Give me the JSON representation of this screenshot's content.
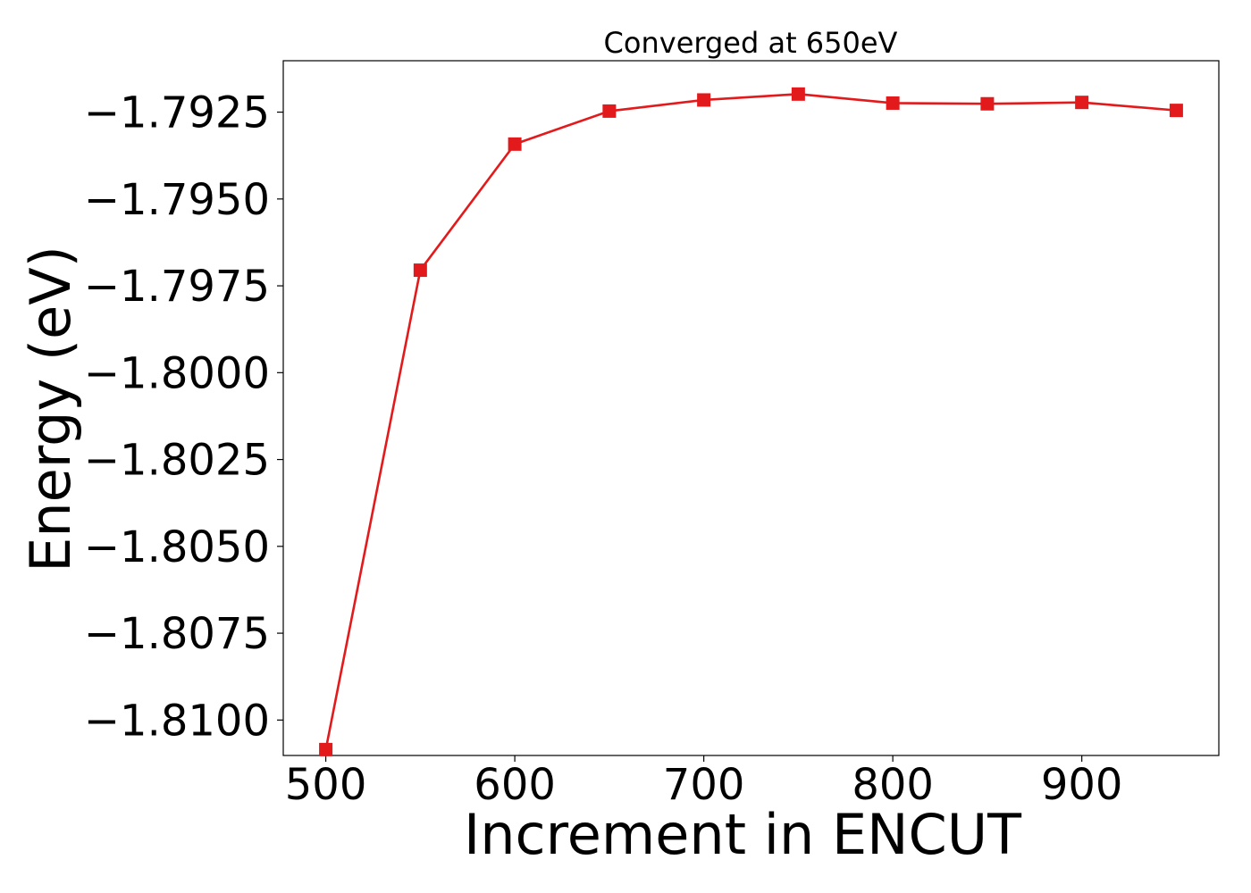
{
  "chart_data": {
    "type": "line",
    "title": "Converged at 650eV",
    "xlabel": "Increment in ENCUT",
    "ylabel": "Energy (eV)",
    "x": [
      500,
      550,
      600,
      650,
      700,
      750,
      800,
      850,
      900,
      950
    ],
    "series": [
      {
        "values": [
          -1.81085,
          -1.79705,
          -1.79342,
          -1.79247,
          -1.79215,
          -1.79198,
          -1.79224,
          -1.79226,
          -1.79222,
          -1.79245
        ],
        "color": "#e31a1c",
        "marker": "square"
      }
    ],
    "xticks": [
      500,
      600,
      700,
      800,
      900
    ],
    "xtick_labels": [
      "500",
      "600",
      "700",
      "800",
      "900"
    ],
    "yticks": [
      -1.81,
      -1.8075,
      -1.805,
      -1.8025,
      -1.8,
      -1.7975,
      -1.795,
      -1.7925
    ],
    "ytick_labels": [
      "−1.8100",
      "−1.8075",
      "−1.8050",
      "−1.8025",
      "−1.8000",
      "−1.7975",
      "−1.7950",
      "−1.7925"
    ],
    "xlim": [
      477.5,
      972.5
    ],
    "ylim": [
      -1.81102,
      -1.79102
    ],
    "grid": false
  }
}
